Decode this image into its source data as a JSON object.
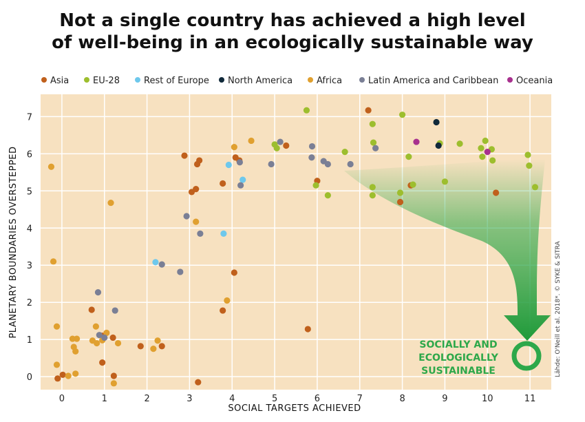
{
  "title_line1": "Not a single country has achieved a high level",
  "title_line2": "of well-being in an ecologically sustainable way",
  "credit": "Lähde: O'Neill et al. 2018*. © SYKE & SITRA",
  "target_label": [
    "SOCIALLY AND",
    "ECOLOGICALLY",
    "SUSTAINABLE"
  ],
  "chart_data": {
    "type": "scatter",
    "title": "Not a single country has achieved a high level of well-being in an ecologically sustainable way",
    "xlabel": "SOCIAL TARGETS ACHIEVED",
    "ylabel": "PLANETARY BOUNDARIES OVERSTEPPED",
    "xlim": [
      -0.5,
      11.5
    ],
    "ylim": [
      -0.35,
      7.6
    ],
    "x_ticks": [
      0,
      1,
      2,
      3,
      4,
      5,
      6,
      7,
      8,
      9,
      10,
      11
    ],
    "y_ticks": [
      0,
      1,
      2,
      3,
      4,
      5,
      6,
      7
    ],
    "grid": true,
    "legend_position": "top",
    "series": [
      {
        "name": "Asia",
        "color": "#c0601c",
        "points": [
          [
            -0.1,
            -0.05
          ],
          [
            0.02,
            0.05
          ],
          [
            0.7,
            1.8
          ],
          [
            0.95,
            0.38
          ],
          [
            0.95,
            1.1
          ],
          [
            1.2,
            1.05
          ],
          [
            1.22,
            0.02
          ],
          [
            1.85,
            0.82
          ],
          [
            2.35,
            0.82
          ],
          [
            2.88,
            5.95
          ],
          [
            3.05,
            4.97
          ],
          [
            3.15,
            5.05
          ],
          [
            3.18,
            5.72
          ],
          [
            3.23,
            5.82
          ],
          [
            3.2,
            -0.15
          ],
          [
            3.78,
            5.2
          ],
          [
            3.78,
            1.78
          ],
          [
            4.05,
            2.8
          ],
          [
            4.08,
            5.9
          ],
          [
            4.17,
            5.82
          ],
          [
            5.27,
            6.22
          ],
          [
            5.78,
            1.28
          ],
          [
            6.0,
            5.27
          ],
          [
            7.2,
            7.17
          ],
          [
            7.95,
            4.7
          ],
          [
            8.2,
            5.15
          ],
          [
            10.2,
            4.95
          ]
        ]
      },
      {
        "name": "EU-28",
        "color": "#9dbe2e",
        "points": [
          [
            5.0,
            6.25
          ],
          [
            5.05,
            6.15
          ],
          [
            5.75,
            7.17
          ],
          [
            5.97,
            5.15
          ],
          [
            6.25,
            4.88
          ],
          [
            6.65,
            6.05
          ],
          [
            7.3,
            6.8
          ],
          [
            7.3,
            5.1
          ],
          [
            7.3,
            4.88
          ],
          [
            7.32,
            6.3
          ],
          [
            7.95,
            4.95
          ],
          [
            8.0,
            7.05
          ],
          [
            8.15,
            5.92
          ],
          [
            8.25,
            5.17
          ],
          [
            8.88,
            6.28
          ],
          [
            9.0,
            5.25
          ],
          [
            9.35,
            6.27
          ],
          [
            9.85,
            6.15
          ],
          [
            9.88,
            5.92
          ],
          [
            9.95,
            6.35
          ],
          [
            10.1,
            6.12
          ],
          [
            10.12,
            5.82
          ],
          [
            10.95,
            5.97
          ],
          [
            10.98,
            5.68
          ],
          [
            11.12,
            5.1
          ]
        ]
      },
      {
        "name": "Rest of Europe",
        "color": "#6ec8ec",
        "points": [
          [
            2.2,
            3.08
          ],
          [
            3.8,
            3.85
          ],
          [
            3.92,
            5.7
          ],
          [
            4.25,
            5.3
          ]
        ]
      },
      {
        "name": "North America",
        "color": "#10293a",
        "points": [
          [
            8.8,
            6.85
          ],
          [
            8.85,
            6.22
          ]
        ]
      },
      {
        "name": "Africa",
        "color": "#e0a030",
        "points": [
          [
            -0.25,
            5.65
          ],
          [
            -0.2,
            3.1
          ],
          [
            -0.12,
            1.35
          ],
          [
            -0.12,
            0.32
          ],
          [
            0.15,
            0.02
          ],
          [
            0.25,
            1.02
          ],
          [
            0.28,
            0.8
          ],
          [
            0.32,
            0.68
          ],
          [
            0.32,
            0.08
          ],
          [
            0.35,
            1.02
          ],
          [
            0.72,
            0.97
          ],
          [
            0.8,
            1.35
          ],
          [
            0.82,
            0.9
          ],
          [
            0.95,
            0.98
          ],
          [
            1.05,
            1.18
          ],
          [
            1.15,
            4.68
          ],
          [
            1.22,
            -0.18
          ],
          [
            1.32,
            0.9
          ],
          [
            2.15,
            0.75
          ],
          [
            2.25,
            0.97
          ],
          [
            3.15,
            4.17
          ],
          [
            3.88,
            2.05
          ],
          [
            4.05,
            6.18
          ],
          [
            4.45,
            6.35
          ]
        ]
      },
      {
        "name": "Latin America and Caribbean",
        "color": "#7a7f95",
        "points": [
          [
            0.85,
            2.27
          ],
          [
            0.88,
            1.12
          ],
          [
            1.0,
            1.05
          ],
          [
            1.25,
            1.78
          ],
          [
            2.35,
            3.02
          ],
          [
            2.78,
            2.82
          ],
          [
            2.93,
            4.32
          ],
          [
            3.25,
            3.85
          ],
          [
            4.18,
            5.77
          ],
          [
            4.2,
            5.15
          ],
          [
            4.92,
            5.72
          ],
          [
            5.13,
            6.32
          ],
          [
            5.87,
            5.9
          ],
          [
            5.88,
            6.2
          ],
          [
            6.15,
            5.8
          ],
          [
            6.25,
            5.72
          ],
          [
            6.78,
            5.72
          ],
          [
            7.37,
            6.15
          ]
        ]
      },
      {
        "name": "Oceania",
        "color": "#a8318e",
        "points": [
          [
            8.33,
            6.32
          ],
          [
            10.0,
            6.05
          ]
        ]
      }
    ]
  }
}
